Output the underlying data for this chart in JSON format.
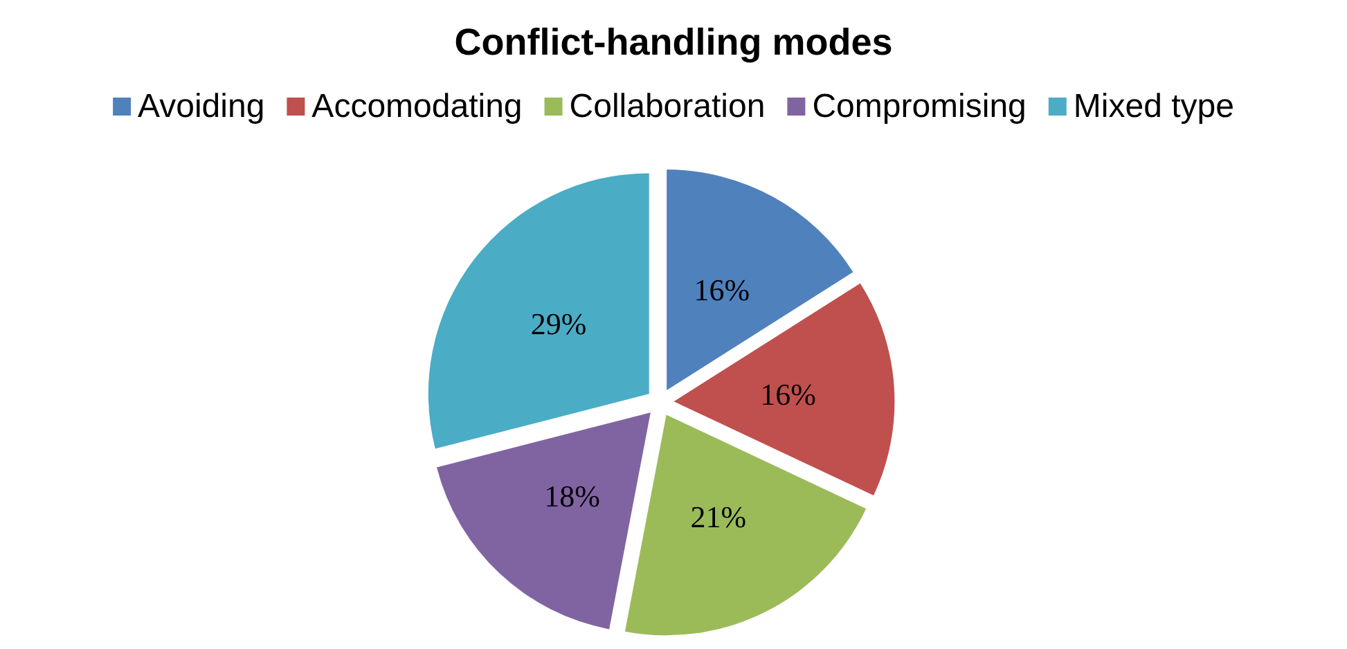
{
  "chart_data": {
    "type": "pie",
    "title": "Conflict-handling modes",
    "categories": [
      "Avoiding",
      "Accomodating",
      "Collaboration",
      "Compromising",
      "Mixed type"
    ],
    "values": [
      16,
      16,
      21,
      18,
      29
    ],
    "colors": [
      "#4f81bd",
      "#c0504d",
      "#9bbb59",
      "#8064a2",
      "#4bacc6"
    ],
    "value_labels": [
      "16%",
      "16%",
      "21%",
      "18%",
      "29%"
    ],
    "legend": "top"
  }
}
